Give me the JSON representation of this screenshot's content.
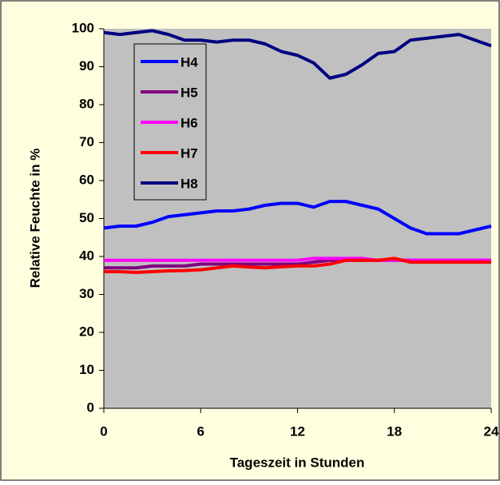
{
  "chart_data": {
    "type": "line",
    "xlabel": "Tageszeit in Stunden",
    "ylabel": "Relative Feuchte in %",
    "x": [
      0,
      1,
      2,
      3,
      4,
      5,
      6,
      7,
      8,
      9,
      10,
      11,
      12,
      13,
      14,
      15,
      16,
      17,
      18,
      19,
      20,
      21,
      22,
      23,
      24
    ],
    "xlim": [
      0,
      24
    ],
    "xticks": [
      0,
      6,
      12,
      18,
      24
    ],
    "ylim": [
      0,
      100
    ],
    "yticks": [
      0,
      10,
      20,
      30,
      40,
      50,
      60,
      70,
      80,
      90,
      100
    ],
    "grid": false,
    "legend": "upper left",
    "series": [
      {
        "name": "H4",
        "color": "#0000ff",
        "values": [
          47.5,
          48,
          48,
          49,
          50.5,
          51,
          51.5,
          52,
          52,
          52.5,
          53.5,
          54,
          54,
          53,
          54.5,
          54.5,
          53.5,
          52.5,
          50,
          47.5,
          46,
          46,
          46,
          47,
          48
        ]
      },
      {
        "name": "H5",
        "color": "#800080",
        "values": [
          37,
          37,
          37,
          37.5,
          37.5,
          37.5,
          38,
          38,
          38,
          38,
          38,
          38,
          38,
          38.5,
          39,
          39,
          39,
          39,
          39,
          39,
          39,
          39,
          39,
          39,
          39
        ]
      },
      {
        "name": "H6",
        "color": "#ff00ff",
        "values": [
          39,
          39,
          39,
          39,
          39,
          39,
          39,
          39,
          39,
          39,
          39,
          39,
          39,
          39.5,
          39.5,
          39.5,
          39.5,
          39,
          39,
          39,
          39,
          39,
          39,
          39,
          39
        ]
      },
      {
        "name": "H7",
        "color": "#ff0000",
        "values": [
          36,
          36,
          35.8,
          36,
          36.2,
          36.3,
          36.5,
          37,
          37.5,
          37.2,
          37,
          37.3,
          37.5,
          37.5,
          38,
          39,
          39,
          39,
          39.5,
          38.5,
          38.5,
          38.5,
          38.5,
          38.5,
          38.5
        ]
      },
      {
        "name": "H8",
        "color": "#000080",
        "values": [
          99,
          98.5,
          99,
          99.5,
          98.5,
          97,
          97,
          96.5,
          97,
          97,
          96,
          94,
          93,
          91,
          87,
          88,
          90.5,
          93.5,
          94,
          97,
          97.5,
          98,
          98.5,
          97,
          95.5
        ]
      }
    ]
  }
}
